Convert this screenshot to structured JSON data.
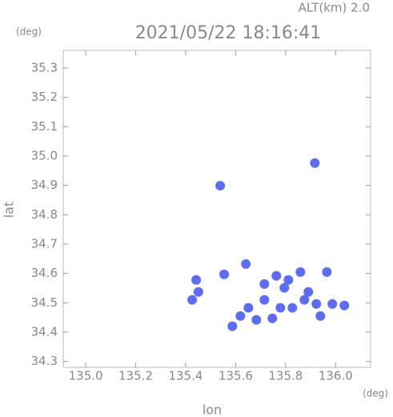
{
  "chart_data": {
    "type": "scatter",
    "header": "ALT(km) 2.0",
    "title": "2021/05/22 18:16:41",
    "y_unit": "(deg)",
    "x_unit": "(deg)",
    "xlabel": "lon",
    "ylabel": "lat",
    "xlim": [
      134.91,
      136.14
    ],
    "ylim": [
      34.28,
      35.36
    ],
    "xticks": [
      {
        "value": 135.0,
        "label": "135.0"
      },
      135.2,
      135.4,
      135.6,
      135.8,
      {
        "value": 136.0,
        "label": "136.0"
      }
    ],
    "yticks": [
      34.3,
      34.4,
      34.5,
      34.6,
      34.7,
      34.8,
      34.9,
      {
        "value": 35.0,
        "label": "35.0"
      },
      35.1,
      35.2,
      35.3
    ],
    "color": "#4a5cf2",
    "x": [
      135.917,
      135.538,
      135.641,
      135.554,
      135.442,
      135.451,
      135.426,
      135.715,
      135.763,
      135.811,
      135.859,
      135.795,
      135.875,
      135.923,
      135.891,
      135.965,
      135.987,
      135.939,
      135.747,
      135.683,
      135.651,
      135.619,
      135.587,
      135.715,
      135.827,
      136.035,
      135.779
    ],
    "y": [
      34.976,
      34.899,
      34.632,
      34.597,
      34.578,
      34.537,
      34.51,
      34.564,
      34.592,
      34.578,
      34.605,
      34.551,
      34.51,
      34.496,
      34.537,
      34.605,
      34.496,
      34.455,
      34.447,
      34.442,
      34.483,
      34.455,
      34.42,
      34.51,
      34.483,
      34.491,
      34.483
    ]
  }
}
